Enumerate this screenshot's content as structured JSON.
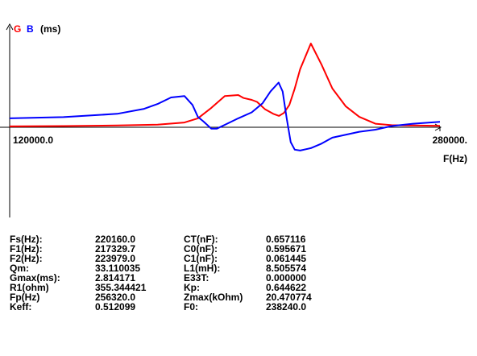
{
  "chart_data": {
    "type": "line",
    "legend": {
      "g_label": "G",
      "b_label": "B",
      "unit_label": "(ms)"
    },
    "xlabel": "F(Hz)",
    "xlim": [
      120000,
      280000
    ],
    "x_min_label": "120000.0",
    "x_max_label": "280000.",
    "ylim": [
      -2.2,
      2.4
    ],
    "series": [
      {
        "name": "G",
        "color": "#ff0000",
        "x": [
          120000,
          140000,
          160000,
          175000,
          185000,
          190000,
          195000,
          200000,
          205000,
          207000,
          210000,
          212000,
          215000,
          218000,
          220160,
          222000,
          224000,
          226000,
          228000,
          232000,
          236000,
          240000,
          245000,
          250000,
          256000,
          262000,
          270000,
          280000
        ],
        "y": [
          0.03,
          0.04,
          0.06,
          0.09,
          0.16,
          0.3,
          0.65,
          1.05,
          1.08,
          0.98,
          0.92,
          0.85,
          0.6,
          0.45,
          0.38,
          0.48,
          0.75,
          1.3,
          1.95,
          2.81,
          2.1,
          1.3,
          0.7,
          0.35,
          0.12,
          0.07,
          0.06,
          0.05
        ]
      },
      {
        "name": "B",
        "color": "#0000ff",
        "x": [
          120000,
          140000,
          160000,
          170000,
          175000,
          180000,
          185000,
          188000,
          190000,
          192000,
          195000,
          197000,
          200000,
          205000,
          210000,
          214000,
          217000,
          220000,
          221500,
          223000,
          224500,
          226000,
          228000,
          232000,
          236000,
          240000,
          250000,
          256000,
          262000,
          270000,
          280000
        ],
        "y": [
          0.3,
          0.34,
          0.45,
          0.62,
          0.78,
          1.0,
          1.05,
          0.75,
          0.35,
          0.2,
          -0.05,
          -0.05,
          0.08,
          0.3,
          0.5,
          0.8,
          1.2,
          1.5,
          1.2,
          0.3,
          -0.5,
          -0.75,
          -0.78,
          -0.7,
          -0.55,
          -0.35,
          -0.15,
          -0.08,
          0.04,
          0.12,
          0.18
        ]
      }
    ]
  },
  "params": [
    [
      "Fs(Hz):",
      "220160.0",
      "CT(nF):",
      "0.657116"
    ],
    [
      "F1(Hz):",
      "217329.7",
      "C0(nF):",
      "0.595671"
    ],
    [
      "F2(Hz):",
      "223979.0",
      "C1(nF):",
      "0.061445"
    ],
    [
      "Qm:",
      "33.110035",
      "L1(mH):",
      "8.505574"
    ],
    [
      "Gmax(ms):",
      "2.814171",
      "E33T:",
      "0.000000"
    ],
    [
      "R1(ohm)",
      "355.344421",
      "Kp:",
      "0.644622"
    ],
    [
      "Fp(Hz)",
      "256320.0",
      "Zmax(kOhm)",
      "20.470774"
    ],
    [
      "Keff:",
      "0.512099",
      "F0:",
      "238240.0"
    ]
  ]
}
